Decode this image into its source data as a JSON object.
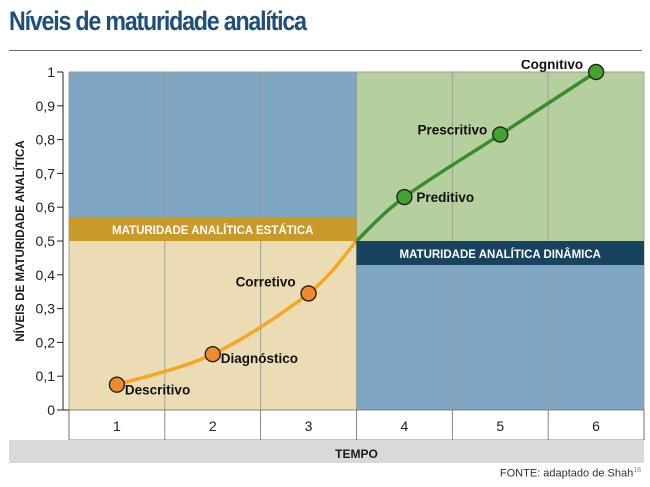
{
  "title": "Níveis de maturidade analítica",
  "source": {
    "text": "FONTE: adaptado de Shah",
    "ref": "18"
  },
  "chart_data": {
    "type": "line",
    "xlabel": "TEMPO",
    "ylabel": "NÍVEIS DE MATURIDADE ANALÍTICA",
    "categories": [
      "1",
      "2",
      "3",
      "4",
      "5",
      "6"
    ],
    "y_ticks": [
      "0",
      "0,1",
      "0,2",
      "0,3",
      "0,4",
      "0,5",
      "0,6",
      "0,7",
      "0,8",
      "0,9",
      "1"
    ],
    "xlim": [
      0.5,
      6.5
    ],
    "ylim": [
      0,
      1
    ],
    "grid": true,
    "series": [
      {
        "color": "#f5a623",
        "points": [
          {
            "x": 1,
            "y": 0.075,
            "label": "Descritivo"
          },
          {
            "x": 2,
            "y": 0.165,
            "label": "Diagnóstico"
          },
          {
            "x": 3,
            "y": 0.345,
            "label": "Corretivo"
          }
        ]
      },
      {
        "color": "#3a8d2f",
        "points": [
          {
            "x": 4,
            "y": 0.63,
            "label": "Preditivo"
          },
          {
            "x": 5,
            "y": 0.815,
            "label": "Prescritivo"
          },
          {
            "x": 6,
            "y": 1.0,
            "label": "Cognitivo"
          }
        ]
      }
    ],
    "regions": [
      {
        "name": "MATURIDADE ANALÍTICA ESTÁTICA",
        "x": [
          0.5,
          3.5
        ],
        "top_color": "#7fa6c3",
        "bottom_color": "#ecdcb4",
        "band_color": "#c99a29"
      },
      {
        "name": "MATURIDADE ANALÍTICA DINÂMICA",
        "x": [
          3.5,
          6.5
        ],
        "top_color": "#b6cf9f",
        "bottom_color": "#7fa6c3",
        "band_color": "#17435f"
      }
    ],
    "colors": {
      "axis_strip": "#d9d9d9",
      "grid": "#9a9a9a",
      "title": "#1f4e79"
    }
  }
}
